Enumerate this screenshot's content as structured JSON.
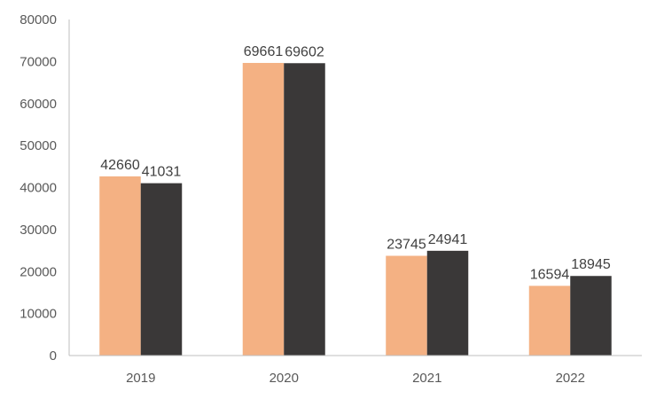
{
  "chart_data": {
    "type": "bar",
    "title": "",
    "xlabel": "",
    "ylabel": "",
    "categories": [
      "2019",
      "2020",
      "2021",
      "2022"
    ],
    "series": [
      {
        "values": [
          42660,
          69661,
          23745,
          16594
        ],
        "color": "#f4b183"
      },
      {
        "values": [
          41031,
          69602,
          24941,
          18945
        ],
        "color": "#3a3838"
      }
    ],
    "ylim": [
      0,
      80000
    ],
    "yticks": [
      "0",
      "10000",
      "20000",
      "30000",
      "40000",
      "50000",
      "60000",
      "70000",
      "80000"
    ],
    "data_labels": [
      [
        "42660",
        "69661",
        "23745",
        "16594"
      ],
      [
        "41031",
        "69602",
        "24941",
        "18945"
      ]
    ],
    "grid": false,
    "legend": "none",
    "axis_color": "#bfbfbf"
  }
}
